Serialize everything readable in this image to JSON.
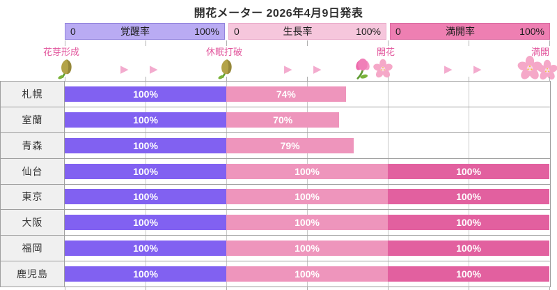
{
  "title": "開花メーター 2026年4月9日発表",
  "colors": {
    "awakening_bar": "#8161f1",
    "awakening_header": "#b9abf3",
    "growth_bar": "#ee95bc",
    "growth_header": "#f6c6dc",
    "fullbloom_bar": "#e2609f",
    "fullbloom_header": "#ee7fb2",
    "milestone_text": "#e2559c",
    "arrow": "#f3abce"
  },
  "headers": [
    {
      "min": "0",
      "label": "覚醒率",
      "max": "100%"
    },
    {
      "min": "0",
      "label": "生長率",
      "max": "100%"
    },
    {
      "min": "0",
      "label": "満開率",
      "max": "100%"
    }
  ],
  "milestones": [
    {
      "label": "花芽形成",
      "icon": "flower-bud-icon"
    },
    {
      "label": "休眠打破",
      "icon": "flower-bud-icon"
    },
    {
      "label": "開花",
      "icon": "open-flower-and-blossom-icon"
    },
    {
      "label": "満開",
      "icon": "full-bloom-blossoms-icon"
    }
  ],
  "icons": {
    "arrow": "▶"
  },
  "chart_data": {
    "type": "bar",
    "categories": [
      "札幌",
      "室蘭",
      "青森",
      "仙台",
      "東京",
      "大阪",
      "福岡",
      "鹿児島"
    ],
    "series": [
      {
        "name": "覚醒率",
        "values": [
          100,
          100,
          100,
          100,
          100,
          100,
          100,
          100
        ]
      },
      {
        "name": "生長率",
        "values": [
          74,
          70,
          79,
          100,
          100,
          100,
          100,
          100
        ]
      },
      {
        "name": "満開率",
        "values": [
          null,
          null,
          null,
          100,
          100,
          100,
          100,
          100
        ]
      }
    ],
    "title": "開花メーター 2026年4月9日発表",
    "xlabel": "",
    "ylabel": "",
    "xlim": [
      0,
      100
    ],
    "unit": "%",
    "grid": true,
    "legend_position": "top-header-bars"
  }
}
